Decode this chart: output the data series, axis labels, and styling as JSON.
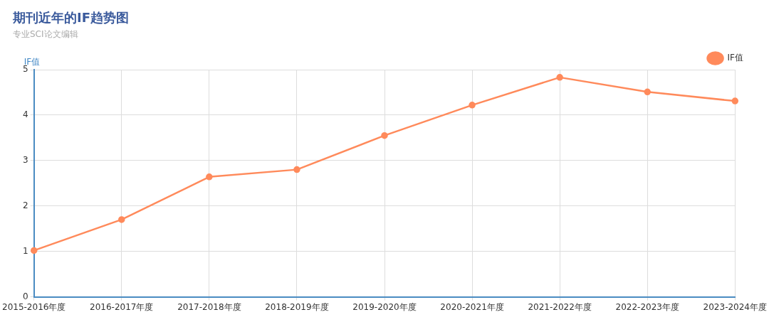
{
  "chart_data": {
    "type": "line",
    "title": "期刊近年的IF趋势图",
    "subtitle": "专业SCI论文编辑",
    "ylabel": "IF值",
    "categories": [
      "2015-2016年度",
      "2016-2017年度",
      "2017-2018年度",
      "2018-2019年度",
      "2019-2020年度",
      "2020-2021年度",
      "2021-2022年度",
      "2022-2023年度",
      "2023-2024年度"
    ],
    "series": [
      {
        "name": "IF值",
        "color": "#ff8a5b",
        "values": [
          1.02,
          1.7,
          2.64,
          2.8,
          3.55,
          4.22,
          4.83,
          4.51,
          4.31
        ]
      }
    ],
    "ylim": [
      0,
      5
    ],
    "yticks": [
      0,
      1,
      2,
      3,
      4,
      5
    ],
    "grid": true,
    "legend": "top right",
    "marker": "circle",
    "line_style": "solid"
  }
}
